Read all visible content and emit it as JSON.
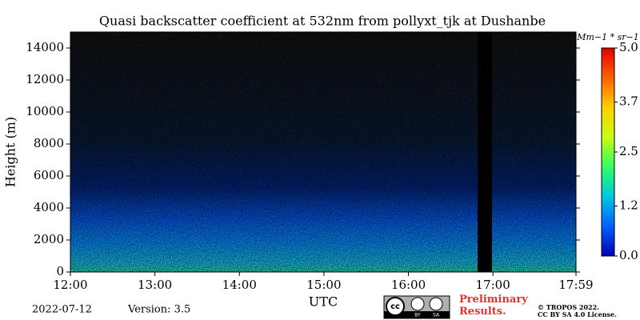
{
  "chart_data": {
    "type": "heatmap",
    "title": "Quasi backscatter coefficient at 532nm from pollyxt_tjk at Dushanbe",
    "x_label": "UTC",
    "y_label": "Height (m)",
    "xlim": [
      12,
      17.983
    ],
    "xticks": [
      {
        "value": 12,
        "label": "12:00"
      },
      {
        "value": 13,
        "label": "13:00"
      },
      {
        "value": 14,
        "label": "14:00"
      },
      {
        "value": 15,
        "label": "15:00"
      },
      {
        "value": 16,
        "label": "16:00"
      },
      {
        "value": 17,
        "label": "17:00"
      },
      {
        "value": 17.983,
        "label": "17:59"
      }
    ],
    "ylim": [
      0,
      15000
    ],
    "yticks": [
      0,
      2000,
      4000,
      6000,
      8000,
      10000,
      12000,
      14000
    ],
    "colorbar_label": "Mm−1 * sr−1",
    "clim": [
      0,
      5
    ],
    "cticks": [
      {
        "value": 0,
        "label": "0.0"
      },
      1.2,
      2.5,
      3.7,
      {
        "value": 5,
        "label": "5.0"
      }
    ],
    "colormap": [
      "#0000b0",
      "#0060ff",
      "#00c8e0",
      "#30ff60",
      "#c8ff10",
      "#ffd000",
      "#ff6000",
      "#e00000"
    ],
    "date": "2022-07-12",
    "version": "Version: 3.5",
    "notice": "Preliminary Results.",
    "copyright": "© TROPOS 2022.",
    "license": "CC BY SA 4.0 License.",
    "badge": [
      "cc",
      "BY",
      "SA"
    ]
  }
}
